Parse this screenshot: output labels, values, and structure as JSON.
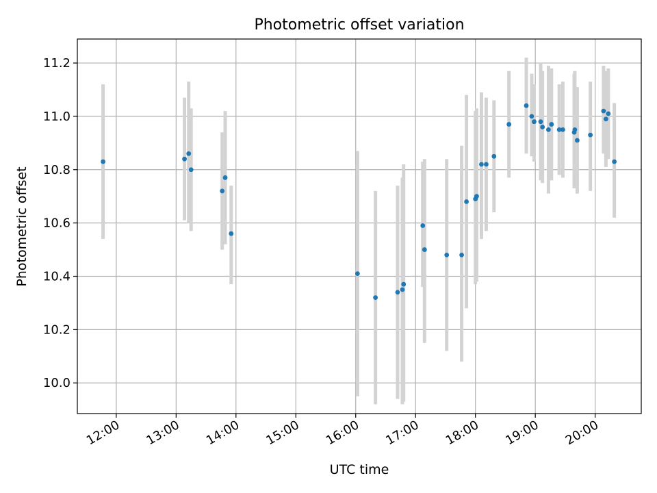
{
  "chart_data": {
    "type": "scatter",
    "title": "Photometric offset variation",
    "xlabel": "UTC time",
    "ylabel": "Photometric offset",
    "grid": true,
    "x_unit": "hours (UTC)",
    "xlim": [
      11.35,
      20.77
    ],
    "ylim": [
      9.885,
      11.29
    ],
    "xticks": [
      {
        "value": 12,
        "label": "12:00"
      },
      {
        "value": 13,
        "label": "13:00"
      },
      {
        "value": 14,
        "label": "14:00"
      },
      {
        "value": 15,
        "label": "15:00"
      },
      {
        "value": 16,
        "label": "16:00"
      },
      {
        "value": 17,
        "label": "17:00"
      },
      {
        "value": 18,
        "label": "18:00"
      },
      {
        "value": 19,
        "label": "19:00"
      },
      {
        "value": 20,
        "label": "20:00"
      }
    ],
    "yticks": [
      {
        "value": 10.0,
        "label": "10.0"
      },
      {
        "value": 10.2,
        "label": "10.2"
      },
      {
        "value": 10.4,
        "label": "10.4"
      },
      {
        "value": 10.6,
        "label": "10.6"
      },
      {
        "value": 10.8,
        "label": "10.8"
      },
      {
        "value": 11.0,
        "label": "11.0"
      },
      {
        "value": 11.2,
        "label": "11.2"
      }
    ],
    "point_color": "#1f77b4",
    "errorbar_color": "#d3d3d3",
    "grid_color": "#b0b0b0",
    "points": [
      {
        "x": 11.78,
        "y": 10.83,
        "lo": 10.54,
        "hi": 11.12
      },
      {
        "x": 13.14,
        "y": 10.84,
        "lo": 10.61,
        "hi": 11.07
      },
      {
        "x": 13.21,
        "y": 10.86,
        "lo": 10.6,
        "hi": 11.13
      },
      {
        "x": 13.25,
        "y": 10.8,
        "lo": 10.57,
        "hi": 11.03
      },
      {
        "x": 13.77,
        "y": 10.72,
        "lo": 10.5,
        "hi": 10.94
      },
      {
        "x": 13.82,
        "y": 10.77,
        "lo": 10.52,
        "hi": 11.02
      },
      {
        "x": 13.92,
        "y": 10.56,
        "lo": 10.37,
        "hi": 10.74
      },
      {
        "x": 16.03,
        "y": 10.41,
        "lo": 9.95,
        "hi": 10.87
      },
      {
        "x": 16.33,
        "y": 10.32,
        "lo": 9.92,
        "hi": 10.72
      },
      {
        "x": 16.7,
        "y": 10.34,
        "lo": 9.94,
        "hi": 10.74
      },
      {
        "x": 16.78,
        "y": 10.35,
        "lo": 9.92,
        "hi": 10.77
      },
      {
        "x": 16.8,
        "y": 10.37,
        "lo": 9.93,
        "hi": 10.82
      },
      {
        "x": 17.12,
        "y": 10.59,
        "lo": 10.36,
        "hi": 10.83
      },
      {
        "x": 17.15,
        "y": 10.5,
        "lo": 10.15,
        "hi": 10.84
      },
      {
        "x": 17.52,
        "y": 10.48,
        "lo": 10.12,
        "hi": 10.84
      },
      {
        "x": 17.77,
        "y": 10.48,
        "lo": 10.08,
        "hi": 10.89
      },
      {
        "x": 17.85,
        "y": 10.68,
        "lo": 10.28,
        "hi": 11.08
      },
      {
        "x": 18.0,
        "y": 10.69,
        "lo": 10.37,
        "hi": 11.02
      },
      {
        "x": 18.02,
        "y": 10.7,
        "lo": 10.38,
        "hi": 11.03
      },
      {
        "x": 18.1,
        "y": 10.82,
        "lo": 10.54,
        "hi": 11.09
      },
      {
        "x": 18.18,
        "y": 10.82,
        "lo": 10.57,
        "hi": 11.07
      },
      {
        "x": 18.31,
        "y": 10.85,
        "lo": 10.64,
        "hi": 11.06
      },
      {
        "x": 18.56,
        "y": 10.97,
        "lo": 10.77,
        "hi": 11.17
      },
      {
        "x": 18.85,
        "y": 11.04,
        "lo": 10.86,
        "hi": 11.22
      },
      {
        "x": 18.94,
        "y": 11.0,
        "lo": 10.85,
        "hi": 11.16
      },
      {
        "x": 18.98,
        "y": 10.98,
        "lo": 10.83,
        "hi": 11.12
      },
      {
        "x": 19.09,
        "y": 10.98,
        "lo": 10.76,
        "hi": 11.2
      },
      {
        "x": 19.12,
        "y": 10.96,
        "lo": 10.75,
        "hi": 11.17
      },
      {
        "x": 19.22,
        "y": 10.95,
        "lo": 10.71,
        "hi": 11.19
      },
      {
        "x": 19.27,
        "y": 10.97,
        "lo": 10.76,
        "hi": 11.18
      },
      {
        "x": 19.4,
        "y": 10.95,
        "lo": 10.78,
        "hi": 11.12
      },
      {
        "x": 19.46,
        "y": 10.95,
        "lo": 10.77,
        "hi": 11.13
      },
      {
        "x": 19.65,
        "y": 10.94,
        "lo": 10.73,
        "hi": 11.16
      },
      {
        "x": 19.66,
        "y": 10.95,
        "lo": 10.73,
        "hi": 11.17
      },
      {
        "x": 19.7,
        "y": 10.91,
        "lo": 10.71,
        "hi": 11.11
      },
      {
        "x": 19.92,
        "y": 10.93,
        "lo": 10.72,
        "hi": 11.13
      },
      {
        "x": 20.14,
        "y": 11.02,
        "lo": 10.86,
        "hi": 11.19
      },
      {
        "x": 20.18,
        "y": 10.99,
        "lo": 10.81,
        "hi": 11.17
      },
      {
        "x": 20.22,
        "y": 11.01,
        "lo": 10.84,
        "hi": 11.18
      },
      {
        "x": 20.32,
        "y": 10.83,
        "lo": 10.62,
        "hi": 11.05
      }
    ]
  }
}
